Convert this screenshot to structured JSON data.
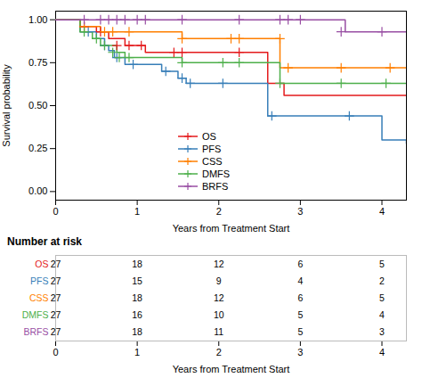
{
  "chart_data": {
    "type": "step",
    "xlabel": "Years from Treatment Start",
    "ylabel": "Survival probability",
    "xlim": [
      0,
      4.3
    ],
    "ylim": [
      -0.05,
      1.05
    ],
    "xticks": [
      0,
      1,
      2,
      3,
      4
    ],
    "yticks": [
      {
        "value": 0.0,
        "label": "0.00"
      },
      {
        "value": 0.25,
        "label": "0.25"
      },
      {
        "value": 0.5,
        "label": "0.50"
      },
      {
        "value": 0.75,
        "label": "0.75"
      },
      {
        "value": 1.0,
        "label": "1.00"
      }
    ],
    "legend": "lower left",
    "marker": "plus",
    "series": [
      {
        "name": "OS",
        "color": "#E41A1C",
        "x": [
          0,
          0.3,
          0.5,
          0.65,
          0.7,
          0.85,
          1.0,
          1.1,
          1.4,
          1.5,
          2.2,
          2.4,
          2.6,
          2.7,
          2.75,
          2.8,
          3.0,
          3.5,
          4.0,
          4.3
        ],
        "values": [
          1.0,
          0.96,
          0.93,
          0.89,
          0.89,
          0.85,
          0.85,
          0.81,
          0.81,
          0.81,
          0.81,
          0.81,
          0.63,
          0.63,
          0.63,
          0.56,
          0.56,
          0.56,
          0.56,
          0.56
        ],
        "censor_x": [
          0.35,
          0.55,
          0.75,
          0.9,
          1.05,
          1.45,
          1.55,
          2.25
        ],
        "censor_values": [
          0.96,
          0.93,
          0.85,
          0.85,
          0.85,
          0.81,
          0.81,
          0.81
        ]
      },
      {
        "name": "PFS",
        "color": "#377EB8",
        "x": [
          0,
          0.3,
          0.5,
          0.6,
          0.65,
          0.72,
          0.85,
          1.0,
          1.3,
          1.5,
          1.6,
          2.0,
          2.6,
          2.7,
          2.75,
          3.5,
          4.0,
          4.3
        ],
        "values": [
          1.0,
          0.93,
          0.89,
          0.85,
          0.82,
          0.78,
          0.74,
          0.74,
          0.7,
          0.66,
          0.63,
          0.63,
          0.44,
          0.44,
          0.44,
          0.44,
          0.3,
          0.28
        ],
        "censor_x": [
          0.4,
          0.6,
          0.75,
          0.95,
          1.35,
          1.55,
          1.65,
          2.05,
          2.65,
          3.6
        ],
        "censor_values": [
          0.93,
          0.85,
          0.78,
          0.74,
          0.7,
          0.66,
          0.63,
          0.63,
          0.44,
          0.44
        ]
      },
      {
        "name": "CSS",
        "color": "#FF7F00",
        "x": [
          0,
          0.3,
          0.55,
          0.65,
          0.85,
          1.5,
          1.55,
          2.1,
          2.15,
          2.7,
          2.75,
          4.0,
          4.3
        ],
        "values": [
          1.0,
          0.96,
          0.93,
          0.93,
          0.93,
          0.93,
          0.89,
          0.89,
          0.89,
          0.89,
          0.72,
          0.72,
          0.72
        ],
        "censor_x": [
          0.35,
          0.6,
          0.7,
          0.9,
          1.55,
          2.15,
          2.25,
          2.75,
          2.85,
          3.5,
          4.1
        ],
        "censor_values": [
          0.96,
          0.93,
          0.93,
          0.93,
          0.89,
          0.89,
          0.89,
          0.89,
          0.72,
          0.72,
          0.72
        ]
      },
      {
        "name": "DMFS",
        "color": "#4DAF4A",
        "x": [
          0,
          0.3,
          0.45,
          0.55,
          0.65,
          0.75,
          0.85,
          1.5,
          1.55,
          2.0,
          2.7,
          2.75,
          4.0,
          4.3
        ],
        "values": [
          1.0,
          0.93,
          0.89,
          0.85,
          0.85,
          0.81,
          0.78,
          0.78,
          0.75,
          0.75,
          0.75,
          0.63,
          0.63,
          0.63
        ],
        "censor_x": [
          0.35,
          0.5,
          0.6,
          0.7,
          0.78,
          0.9,
          1.55,
          2.05,
          2.25,
          2.75,
          3.5,
          4.05
        ],
        "censor_values": [
          0.93,
          0.89,
          0.85,
          0.81,
          0.78,
          0.78,
          0.75,
          0.75,
          0.75,
          0.63,
          0.63,
          0.63
        ]
      },
      {
        "name": "BRFS",
        "color": "#984EA3",
        "x": [
          0,
          0.9,
          1.0,
          2.2,
          2.25,
          2.7,
          2.75,
          3.5,
          3.55,
          4.0,
          4.3
        ],
        "values": [
          1.0,
          1.0,
          1.0,
          1.0,
          1.0,
          1.0,
          1.0,
          1.0,
          0.93,
          0.93,
          0.93
        ],
        "censor_x": [
          0.35,
          0.55,
          0.65,
          0.75,
          0.85,
          1.0,
          1.1,
          1.55,
          2.25,
          2.75,
          2.85,
          3.0,
          3.5,
          4.0
        ],
        "censor_values": [
          1.0,
          1.0,
          1.0,
          1.0,
          1.0,
          1.0,
          1.0,
          1.0,
          1.0,
          1.0,
          1.0,
          1.0,
          0.93,
          0.93
        ]
      }
    ],
    "risk_table": {
      "title": "Number at risk",
      "xlabel": "Years from Treatment Start",
      "labels": [
        "OS",
        "PFS",
        "CSS",
        "DMFS",
        "BRFS"
      ],
      "colors": [
        "#E41A1C",
        "#377EB8",
        "#FF7F00",
        "#4DAF4A",
        "#984EA3"
      ],
      "times": [
        0,
        1,
        2,
        3,
        4
      ],
      "counts": [
        [
          27,
          18,
          12,
          6,
          5
        ],
        [
          27,
          15,
          9,
          4,
          2
        ],
        [
          27,
          18,
          12,
          6,
          5
        ],
        [
          27,
          16,
          10,
          5,
          4
        ],
        [
          27,
          18,
          11,
          5,
          3
        ]
      ]
    }
  }
}
